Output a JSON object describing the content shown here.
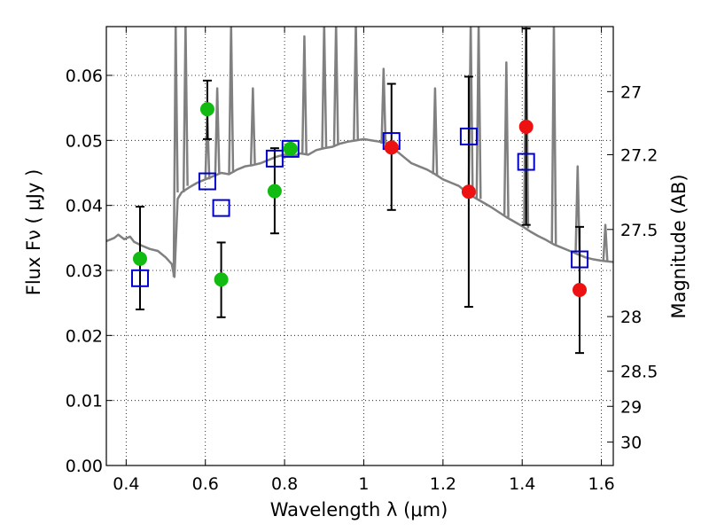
{
  "chart_data": {
    "type": "scatter",
    "title": "",
    "xlabel": "Wavelength  λ (μm)",
    "ylabel": "Flux  Fν  ( μJy )",
    "ylabel_right": "Magnitude (AB)",
    "xlim": [
      0.35,
      1.63
    ],
    "ylim": [
      0.0,
      0.0675
    ],
    "grid": true,
    "grid_style": "dotted",
    "x_ticks": [
      0.4,
      0.6,
      0.8,
      1.0,
      1.2,
      1.4,
      1.6
    ],
    "x_tick_labels": [
      "0.4",
      "0.6",
      "0.8",
      "1",
      "1.2",
      "1.4",
      "1.6"
    ],
    "y_ticks": [
      0.0,
      0.01,
      0.02,
      0.03,
      0.04,
      0.05,
      0.06
    ],
    "y_tick_labels": [
      "0.00",
      "0.01",
      "0.02",
      "0.03",
      "0.04",
      "0.05",
      "0.06"
    ],
    "right_axis_ticks": [
      {
        "label": "27",
        "flux": 0.0575
      },
      {
        "label": "27.2",
        "flux": 0.0478
      },
      {
        "label": "27.5",
        "flux": 0.0363
      },
      {
        "label": "28",
        "flux": 0.0229
      },
      {
        "label": "28.5",
        "flux": 0.0145
      },
      {
        "label": "29",
        "flux": 0.0091
      },
      {
        "label": "30",
        "flux": 0.0036
      }
    ],
    "colors": {
      "spectrum": "#808080",
      "model": "#0000cc",
      "optical": "#11bb11",
      "nir": "#ee1111",
      "errorbar": "#000000"
    },
    "series": [
      {
        "kind": "line",
        "style": "spectrum",
        "x": [
          0.35,
          0.37,
          0.38,
          0.395,
          0.41,
          0.42,
          0.44,
          0.46,
          0.48,
          0.5,
          0.515,
          0.52,
          0.522,
          0.53,
          0.54,
          0.56,
          0.58,
          0.6,
          0.62,
          0.64,
          0.66,
          0.68,
          0.7,
          0.72,
          0.74,
          0.76,
          0.78,
          0.8,
          0.82,
          0.84,
          0.86,
          0.88,
          0.9,
          0.92,
          0.94,
          0.96,
          0.98,
          1.0,
          1.02,
          1.04,
          1.06,
          1.08,
          1.1,
          1.12,
          1.14,
          1.16,
          1.18,
          1.2,
          1.22,
          1.24,
          1.26,
          1.28,
          1.3,
          1.32,
          1.34,
          1.36,
          1.38,
          1.4,
          1.42,
          1.44,
          1.46,
          1.48,
          1.5,
          1.52,
          1.54,
          1.56,
          1.58,
          1.6,
          1.63
        ],
        "y": [
          0.0345,
          0.035,
          0.0355,
          0.0348,
          0.0352,
          0.0344,
          0.0338,
          0.0333,
          0.033,
          0.032,
          0.031,
          0.0295,
          0.029,
          0.041,
          0.042,
          0.0428,
          0.0435,
          0.044,
          0.0445,
          0.045,
          0.0448,
          0.0455,
          0.046,
          0.0462,
          0.0465,
          0.047,
          0.0475,
          0.0478,
          0.0475,
          0.048,
          0.0478,
          0.0485,
          0.0488,
          0.049,
          0.0495,
          0.0498,
          0.05,
          0.0502,
          0.05,
          0.0498,
          0.0495,
          0.0485,
          0.0475,
          0.0465,
          0.046,
          0.0455,
          0.0448,
          0.044,
          0.0435,
          0.043,
          0.042,
          0.0412,
          0.0405,
          0.0398,
          0.039,
          0.0382,
          0.0375,
          0.0368,
          0.036,
          0.0353,
          0.0347,
          0.034,
          0.0335,
          0.033,
          0.0325,
          0.032,
          0.0317,
          0.0315,
          0.0313
        ]
      },
      {
        "kind": "line",
        "style": "spectrum-emission",
        "segments": [
          {
            "x": [
              0.52,
              0.525,
              0.53
            ],
            "y": [
              0.029,
              0.068,
              0.042
            ]
          },
          {
            "x": [
              0.545,
              0.55,
              0.555
            ],
            "y": [
              0.042,
              0.068,
              0.043
            ]
          },
          {
            "x": [
              0.6,
              0.605,
              0.61
            ],
            "y": [
              0.044,
              0.054,
              0.044
            ]
          },
          {
            "x": [
              0.625,
              0.63,
              0.635
            ],
            "y": [
              0.0445,
              0.058,
              0.045
            ]
          },
          {
            "x": [
              0.66,
              0.665,
              0.67
            ],
            "y": [
              0.045,
              0.068,
              0.045
            ]
          },
          {
            "x": [
              0.715,
              0.72,
              0.725
            ],
            "y": [
              0.046,
              0.058,
              0.0462
            ]
          },
          {
            "x": [
              0.845,
              0.85,
              0.855
            ],
            "y": [
              0.048,
              0.066,
              0.048
            ]
          },
          {
            "x": [
              0.895,
              0.9,
              0.905
            ],
            "y": [
              0.0488,
              0.068,
              0.049
            ]
          },
          {
            "x": [
              0.925,
              0.93,
              0.935
            ],
            "y": [
              0.049,
              0.068,
              0.0495
            ]
          },
          {
            "x": [
              0.975,
              0.98,
              0.985
            ],
            "y": [
              0.05,
              0.068,
              0.05
            ]
          },
          {
            "x": [
              1.045,
              1.05,
              1.055
            ],
            "y": [
              0.0495,
              0.061,
              0.0495
            ]
          },
          {
            "x": [
              1.175,
              1.18,
              1.185
            ],
            "y": [
              0.0448,
              0.058,
              0.0445
            ]
          },
          {
            "x": [
              1.265,
              1.27,
              1.275
            ],
            "y": [
              0.042,
              0.068,
              0.0415
            ]
          },
          {
            "x": [
              1.285,
              1.29,
              1.295
            ],
            "y": [
              0.041,
              0.068,
              0.041
            ]
          },
          {
            "x": [
              1.355,
              1.36,
              1.365
            ],
            "y": [
              0.0385,
              0.062,
              0.0382
            ]
          },
          {
            "x": [
              1.405,
              1.41,
              1.415
            ],
            "y": [
              0.037,
              0.068,
              0.0365
            ]
          },
          {
            "x": [
              1.475,
              1.48,
              1.485
            ],
            "y": [
              0.0342,
              0.068,
              0.034
            ]
          },
          {
            "x": [
              1.535,
              1.54,
              1.545
            ],
            "y": [
              0.0327,
              0.046,
              0.0325
            ]
          },
          {
            "x": [
              1.605,
              1.61,
              1.615
            ],
            "y": [
              0.0315,
              0.037,
              0.0314
            ]
          }
        ]
      },
      {
        "kind": "scatter",
        "style": "model",
        "marker": "open-square",
        "x": [
          0.435,
          0.605,
          0.64,
          0.775,
          0.815,
          1.07,
          1.265,
          1.41,
          1.545
        ],
        "y": [
          0.0288,
          0.0437,
          0.0396,
          0.0472,
          0.0487,
          0.0499,
          0.0506,
          0.0467,
          0.0317
        ]
      },
      {
        "kind": "scatter",
        "style": "optical",
        "marker": "filled-circle",
        "x": [
          0.435,
          0.605,
          0.64,
          0.775,
          0.815
        ],
        "y": [
          0.0318,
          0.0548,
          0.0286,
          0.0422,
          0.0487
        ],
        "yerr_low": [
          0.024,
          0.0502,
          0.0228,
          0.0357,
          null
        ],
        "yerr_high": [
          0.0398,
          0.0592,
          0.0343,
          0.0488,
          null
        ]
      },
      {
        "kind": "scatter",
        "style": "nir",
        "marker": "filled-circle",
        "x": [
          1.07,
          1.265,
          1.41,
          1.545
        ],
        "y": [
          0.0489,
          0.0421,
          0.0521,
          0.027
        ],
        "yerr_low": [
          0.0393,
          0.0244,
          0.037,
          0.0173
        ],
        "yerr_high": [
          0.0587,
          0.0598,
          0.0672,
          0.0367
        ]
      }
    ]
  }
}
